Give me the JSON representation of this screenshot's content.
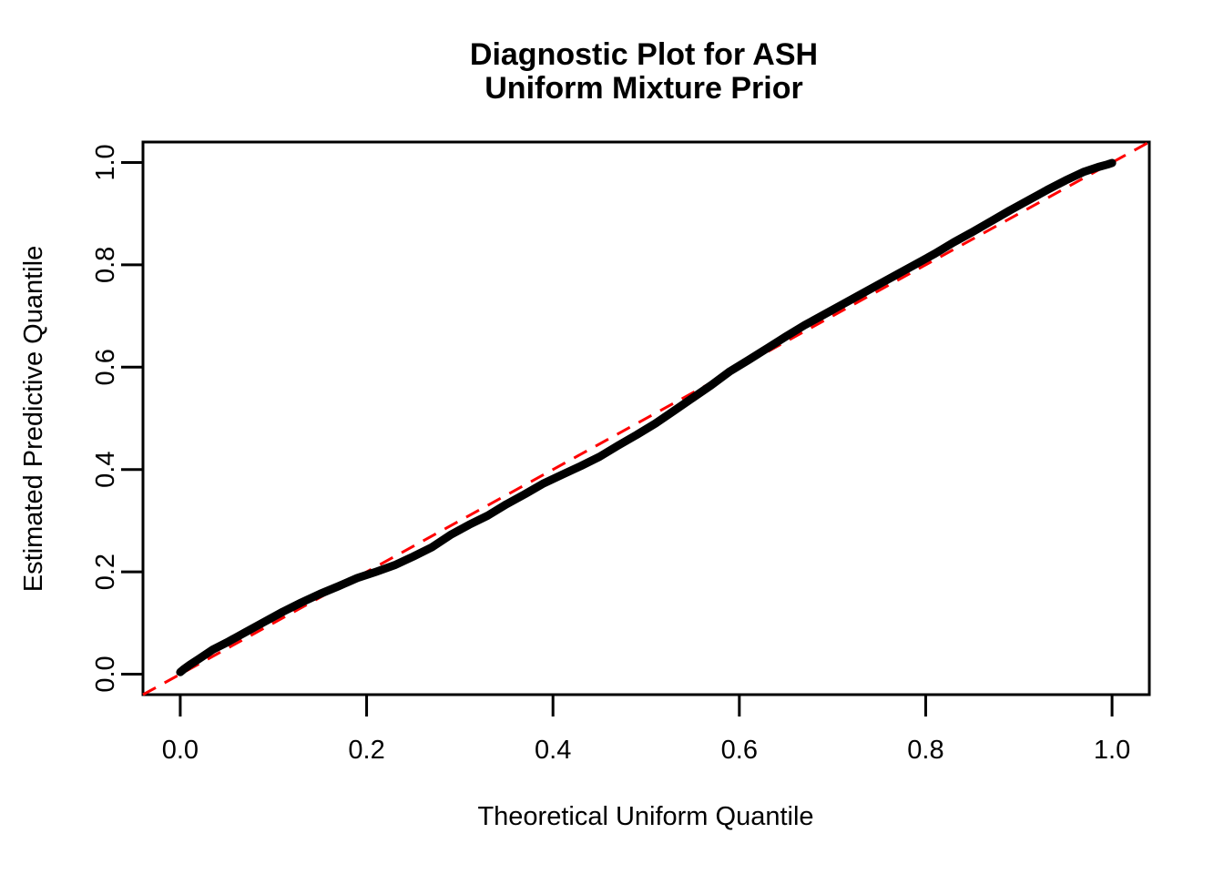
{
  "page": {
    "background_color": "#FFFFFF"
  },
  "chart_data": {
    "type": "scatter",
    "style": "r-base-qqplot",
    "title_line1": "Diagnostic Plot for ASH",
    "title_line2": "Uniform Mixture Prior",
    "xlabel": "Theoretical Uniform Quantile",
    "ylabel": "Estimated Predictive Quantile",
    "xlim": [
      -0.04,
      1.04
    ],
    "ylim": [
      -0.04,
      1.04
    ],
    "grid": false,
    "legend": "none",
    "plot_background": "#FFFFFF",
    "border_color": "#000000",
    "x_ticks": {
      "values": [
        0.0,
        0.2,
        0.4,
        0.6,
        0.8,
        1.0
      ],
      "labels": [
        "0.0",
        "0.2",
        "0.4",
        "0.6",
        "0.8",
        "1.0"
      ]
    },
    "y_ticks": {
      "values": [
        0.0,
        0.2,
        0.4,
        0.6,
        0.8,
        1.0
      ],
      "labels": [
        "0.0",
        "0.2",
        "0.4",
        "0.6",
        "0.8",
        "1.0"
      ]
    },
    "series": [
      {
        "name": "reference-line-y-equals-x",
        "role": "reference",
        "type": "dashed-line",
        "color": "#FF0000",
        "x": [
          -0.04,
          1.04
        ],
        "y": [
          -0.04,
          1.04
        ]
      },
      {
        "name": "estimated-vs-theoretical-quantiles",
        "role": "curve",
        "type": "thick-point-curve",
        "color": "#000000",
        "points": [
          [
            0.0,
            0.004
          ],
          [
            0.004,
            0.01
          ],
          [
            0.01,
            0.018
          ],
          [
            0.02,
            0.03
          ],
          [
            0.035,
            0.048
          ],
          [
            0.05,
            0.062
          ],
          [
            0.07,
            0.082
          ],
          [
            0.09,
            0.102
          ],
          [
            0.11,
            0.122
          ],
          [
            0.13,
            0.14
          ],
          [
            0.15,
            0.157
          ],
          [
            0.17,
            0.172
          ],
          [
            0.19,
            0.188
          ],
          [
            0.21,
            0.2
          ],
          [
            0.23,
            0.213
          ],
          [
            0.25,
            0.23
          ],
          [
            0.27,
            0.248
          ],
          [
            0.29,
            0.272
          ],
          [
            0.31,
            0.292
          ],
          [
            0.33,
            0.31
          ],
          [
            0.35,
            0.332
          ],
          [
            0.37,
            0.352
          ],
          [
            0.39,
            0.373
          ],
          [
            0.41,
            0.39
          ],
          [
            0.43,
            0.407
          ],
          [
            0.45,
            0.425
          ],
          [
            0.47,
            0.447
          ],
          [
            0.49,
            0.468
          ],
          [
            0.51,
            0.49
          ],
          [
            0.53,
            0.515
          ],
          [
            0.55,
            0.54
          ],
          [
            0.57,
            0.565
          ],
          [
            0.59,
            0.592
          ],
          [
            0.61,
            0.614
          ],
          [
            0.63,
            0.637
          ],
          [
            0.65,
            0.66
          ],
          [
            0.67,
            0.682
          ],
          [
            0.69,
            0.702
          ],
          [
            0.71,
            0.722
          ],
          [
            0.73,
            0.742
          ],
          [
            0.75,
            0.762
          ],
          [
            0.77,
            0.782
          ],
          [
            0.79,
            0.802
          ],
          [
            0.81,
            0.822
          ],
          [
            0.83,
            0.844
          ],
          [
            0.85,
            0.864
          ],
          [
            0.87,
            0.885
          ],
          [
            0.89,
            0.906
          ],
          [
            0.91,
            0.926
          ],
          [
            0.93,
            0.946
          ],
          [
            0.95,
            0.965
          ],
          [
            0.97,
            0.982
          ],
          [
            0.985,
            0.991
          ],
          [
            0.995,
            0.996
          ],
          [
            1.0,
            0.999
          ]
        ]
      }
    ]
  }
}
